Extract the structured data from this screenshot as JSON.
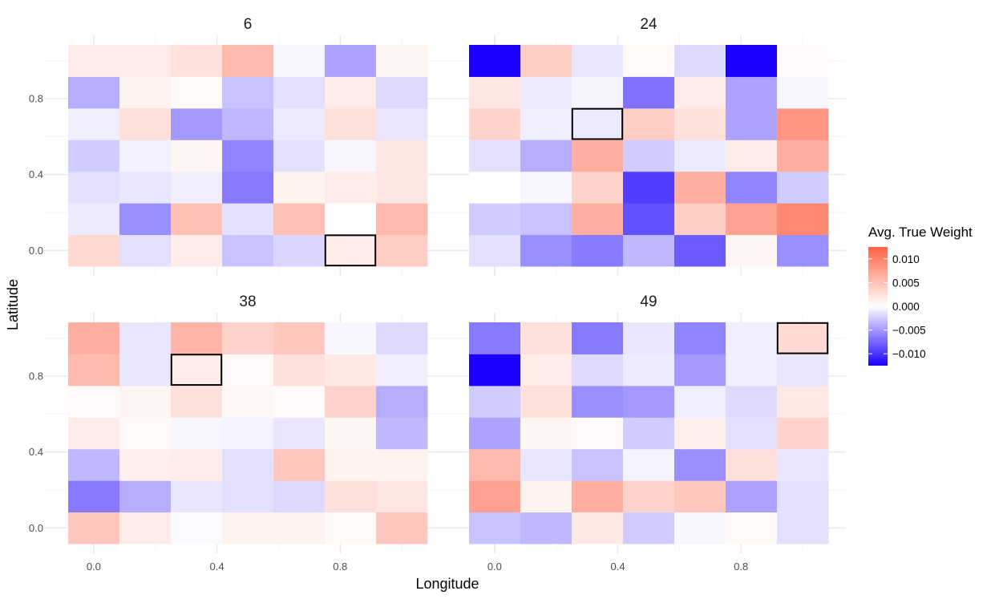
{
  "chart_data": {
    "type": "heatmap",
    "xlabel": "Longitude",
    "ylabel": "Latitude",
    "x": [
      0.0,
      0.167,
      0.333,
      0.5,
      0.667,
      0.833,
      1.0
    ],
    "y": [
      0.0,
      0.167,
      0.333,
      0.5,
      0.667,
      0.833,
      1.0
    ],
    "x_ticks": [
      {
        "value": 0.0,
        "label": "0.0"
      },
      {
        "value": 0.4,
        "label": "0.4"
      },
      {
        "value": 0.8,
        "label": "0.8"
      }
    ],
    "y_ticks": [
      {
        "value": 0.0,
        "label": "0.0"
      },
      {
        "value": 0.4,
        "label": "0.4"
      },
      {
        "value": 0.8,
        "label": "0.8"
      }
    ],
    "xlim": [
      -0.083,
      1.083
    ],
    "ylim": [
      -0.083,
      1.083
    ],
    "grid": true,
    "legend": {
      "title": "Avg. True Weight",
      "placement": "right",
      "ticks": [
        {
          "value": 0.01,
          "label": "0.010"
        },
        {
          "value": 0.005,
          "label": "0.005"
        },
        {
          "value": 0.0,
          "label": "0.000"
        },
        {
          "value": -0.005,
          "label": "−0.005"
        },
        {
          "value": -0.01,
          "label": "−0.010"
        }
      ],
      "range": [
        -0.0125,
        0.0125
      ]
    },
    "color_scale": {
      "low": "#1a00ff",
      "mid": "#ffffff",
      "high": "#ff6347"
    },
    "highlight_color": "#000000",
    "panels": [
      {
        "title": "6",
        "highlight": [
          5,
          0
        ],
        "values": [
          [
            0.003,
            -0.0015,
            0.0015,
            -0.003,
            -0.002,
            0.0015,
            0.004
          ],
          [
            -0.001,
            -0.0055,
            0.005,
            -0.0015,
            0.005,
            0.0,
            0.0055
          ],
          [
            -0.0015,
            -0.0012,
            -0.0008,
            -0.0065,
            0.001,
            0.0015,
            0.002
          ],
          [
            -0.0025,
            -0.0007,
            0.0008,
            -0.006,
            -0.0015,
            -0.0004,
            0.002
          ],
          [
            -0.0008,
            0.0025,
            -0.005,
            -0.0035,
            -0.001,
            0.0025,
            -0.0012
          ],
          [
            -0.004,
            0.001,
            0.0005,
            -0.003,
            -0.0015,
            0.0015,
            -0.0018
          ],
          [
            0.0015,
            0.0015,
            0.0025,
            0.0055,
            -0.0004,
            -0.0045,
            0.0008
          ]
        ]
      },
      {
        "title": "24",
        "highlight": [
          2,
          4
        ],
        "values": [
          [
            -0.0015,
            -0.0055,
            -0.0065,
            -0.0035,
            -0.008,
            0.0008,
            -0.0055
          ],
          [
            -0.0025,
            -0.003,
            0.0065,
            -0.0085,
            0.004,
            0.0075,
            0.0095
          ],
          [
            0.0,
            -0.0004,
            0.0035,
            -0.0095,
            0.0065,
            -0.006,
            -0.0025
          ],
          [
            -0.0015,
            -0.004,
            0.0065,
            -0.0025,
            -0.001,
            0.0015,
            0.0065
          ],
          [
            0.0035,
            -0.0008,
            -0.001,
            0.004,
            0.0025,
            -0.0045,
            0.0085
          ],
          [
            0.002,
            -0.001,
            -0.0005,
            -0.007,
            0.0015,
            -0.0045,
            -0.0004
          ],
          [
            -0.0125,
            0.004,
            -0.0012,
            0.0005,
            -0.0018,
            -0.0125,
            0.0003
          ]
        ]
      },
      {
        "title": "38",
        "highlight": [
          2,
          5
        ],
        "values": [
          [
            0.0045,
            0.0015,
            -0.0002,
            0.001,
            0.001,
            0.0005,
            0.0045
          ],
          [
            -0.0065,
            -0.004,
            -0.0012,
            -0.0015,
            -0.0018,
            0.0025,
            0.002
          ],
          [
            -0.0035,
            0.0012,
            0.0015,
            -0.0015,
            0.0045,
            0.001,
            0.001
          ],
          [
            0.0015,
            0.0005,
            -0.0004,
            -0.0006,
            -0.0012,
            0.0008,
            -0.0035
          ],
          [
            0.0003,
            0.0008,
            0.0025,
            0.0006,
            0.0003,
            0.0035,
            -0.004
          ],
          [
            0.0055,
            -0.0012,
            0.0015,
            0.0004,
            0.0025,
            0.0018,
            -0.0008
          ],
          [
            0.0065,
            -0.0012,
            0.006,
            0.0035,
            0.0045,
            -0.0004,
            -0.0018
          ]
        ]
      },
      {
        "title": "49",
        "highlight": [
          6,
          6
        ],
        "values": [
          [
            -0.003,
            -0.0035,
            0.0018,
            -0.0025,
            -0.0004,
            0.0005,
            -0.0015
          ],
          [
            0.0075,
            0.001,
            0.0065,
            0.0035,
            0.0045,
            -0.0045,
            -0.0015
          ],
          [
            0.0055,
            -0.0012,
            -0.003,
            -0.0006,
            -0.0055,
            0.0025,
            -0.0012
          ],
          [
            -0.0045,
            0.0008,
            0.0004,
            -0.0025,
            0.0012,
            -0.0015,
            0.0035
          ],
          [
            -0.0025,
            0.0025,
            -0.0055,
            -0.005,
            -0.0008,
            -0.0018,
            0.0018
          ],
          [
            -0.0125,
            0.0015,
            -0.0018,
            -0.001,
            -0.005,
            -0.0008,
            -0.0012
          ],
          [
            -0.0065,
            0.0025,
            -0.0065,
            -0.0012,
            -0.006,
            -0.0008,
            0.003
          ]
        ]
      }
    ]
  }
}
